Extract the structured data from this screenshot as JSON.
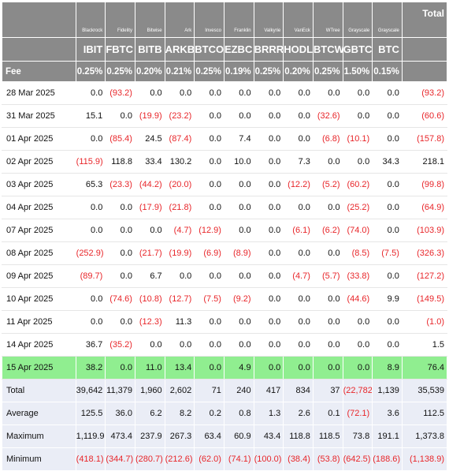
{
  "header": {
    "issuers": [
      "Blackrock",
      "Fidelity",
      "Bitwise",
      "Ark",
      "Invesco",
      "Franklin",
      "Valkyrie",
      "VanEck",
      "WTree",
      "Grayscale",
      "Grayscale"
    ],
    "total_label": "Total",
    "tickers": [
      "IBIT",
      "FBTC",
      "BITB",
      "ARKB",
      "BTCO",
      "EZBC",
      "BRRR",
      "HODL",
      "BTCW",
      "GBTC",
      "BTC"
    ],
    "fee_label": "Fee",
    "fees": [
      "0.25%",
      "0.25%",
      "0.20%",
      "0.21%",
      "0.25%",
      "0.19%",
      "0.25%",
      "0.20%",
      "0.25%",
      "1.50%",
      "0.15%"
    ]
  },
  "rows": [
    {
      "date": "28 Mar 2025",
      "values": [
        "0.0",
        "(93.2)",
        "0.0",
        "0.0",
        "0.0",
        "0.0",
        "0.0",
        "0.0",
        "0.0",
        "0.0",
        "0.0"
      ],
      "total": "(93.2)"
    },
    {
      "date": "31 Mar 2025",
      "values": [
        "15.1",
        "0.0",
        "(19.9)",
        "(23.2)",
        "0.0",
        "0.0",
        "0.0",
        "0.0",
        "(32.6)",
        "0.0",
        "0.0"
      ],
      "total": "(60.6)"
    },
    {
      "date": "01 Apr 2025",
      "values": [
        "0.0",
        "(85.4)",
        "24.5",
        "(87.4)",
        "0.0",
        "7.4",
        "0.0",
        "0.0",
        "(6.8)",
        "(10.1)",
        "0.0"
      ],
      "total": "(157.8)"
    },
    {
      "date": "02 Apr 2025",
      "values": [
        "(115.9)",
        "118.8",
        "33.4",
        "130.2",
        "0.0",
        "10.0",
        "0.0",
        "7.3",
        "0.0",
        "0.0",
        "34.3"
      ],
      "total": "218.1"
    },
    {
      "date": "03 Apr 2025",
      "values": [
        "65.3",
        "(23.3)",
        "(44.2)",
        "(20.0)",
        "0.0",
        "0.0",
        "0.0",
        "(12.2)",
        "(5.2)",
        "(60.2)",
        "0.0"
      ],
      "total": "(99.8)"
    },
    {
      "date": "04 Apr 2025",
      "values": [
        "0.0",
        "0.0",
        "(17.9)",
        "(21.8)",
        "0.0",
        "0.0",
        "0.0",
        "0.0",
        "0.0",
        "(25.2)",
        "0.0"
      ],
      "total": "(64.9)"
    },
    {
      "date": "07 Apr 2025",
      "values": [
        "0.0",
        "0.0",
        "0.0",
        "(4.7)",
        "(12.9)",
        "0.0",
        "0.0",
        "(6.1)",
        "(6.2)",
        "(74.0)",
        "0.0"
      ],
      "total": "(103.9)"
    },
    {
      "date": "08 Apr 2025",
      "values": [
        "(252.9)",
        "0.0",
        "(21.7)",
        "(19.9)",
        "(6.9)",
        "(8.9)",
        "0.0",
        "0.0",
        "0.0",
        "(8.5)",
        "(7.5)"
      ],
      "total": "(326.3)"
    },
    {
      "date": "09 Apr 2025",
      "values": [
        "(89.7)",
        "0.0",
        "6.7",
        "0.0",
        "0.0",
        "0.0",
        "0.0",
        "(4.7)",
        "(5.7)",
        "(33.8)",
        "0.0"
      ],
      "total": "(127.2)"
    },
    {
      "date": "10 Apr 2025",
      "values": [
        "0.0",
        "(74.6)",
        "(10.8)",
        "(12.7)",
        "(7.5)",
        "(9.2)",
        "0.0",
        "0.0",
        "0.0",
        "(44.6)",
        "9.9"
      ],
      "total": "(149.5)"
    },
    {
      "date": "11 Apr 2025",
      "values": [
        "0.0",
        "0.0",
        "(12.3)",
        "11.3",
        "0.0",
        "0.0",
        "0.0",
        "0.0",
        "0.0",
        "0.0",
        "0.0"
      ],
      "total": "(1.0)"
    },
    {
      "date": "14 Apr 2025",
      "values": [
        "36.7",
        "(35.2)",
        "0.0",
        "0.0",
        "0.0",
        "0.0",
        "0.0",
        "0.0",
        "0.0",
        "0.0",
        "0.0"
      ],
      "total": "1.5"
    },
    {
      "date": "15 Apr 2025",
      "values": [
        "38.2",
        "0.0",
        "11.0",
        "13.4",
        "0.0",
        "4.9",
        "0.0",
        "0.0",
        "0.0",
        "0.0",
        "8.9"
      ],
      "total": "76.4",
      "highlight": true
    }
  ],
  "summary": [
    {
      "label": "Total",
      "values": [
        "39,642",
        "11,379",
        "1,960",
        "2,602",
        "71",
        "240",
        "417",
        "834",
        "37",
        "(22,782)",
        "1,139"
      ],
      "total": "35,539"
    },
    {
      "label": "Average",
      "values": [
        "125.5",
        "36.0",
        "6.2",
        "8.2",
        "0.2",
        "0.8",
        "1.3",
        "2.6",
        "0.1",
        "(72.1)",
        "3.6"
      ],
      "total": "112.5"
    },
    {
      "label": "Maximum",
      "values": [
        "1,119.9",
        "473.4",
        "237.9",
        "267.3",
        "63.4",
        "60.9",
        "43.4",
        "118.8",
        "118.5",
        "73.8",
        "191.1"
      ],
      "total": "1,373.8"
    },
    {
      "label": "Minimum",
      "values": [
        "(418.1)",
        "(344.7)",
        "(280.7)",
        "(212.6)",
        "(62.0)",
        "(74.1)",
        "(100.0)",
        "(38.4)",
        "(53.8)",
        "(642.5)",
        "(188.6)"
      ],
      "total": "(1,138.9)"
    }
  ],
  "colors": {
    "header_bg": "#8a8a8a",
    "negative": "#e8262a",
    "highlight": "#90ee90",
    "summary_bg": "#eaedf6"
  }
}
